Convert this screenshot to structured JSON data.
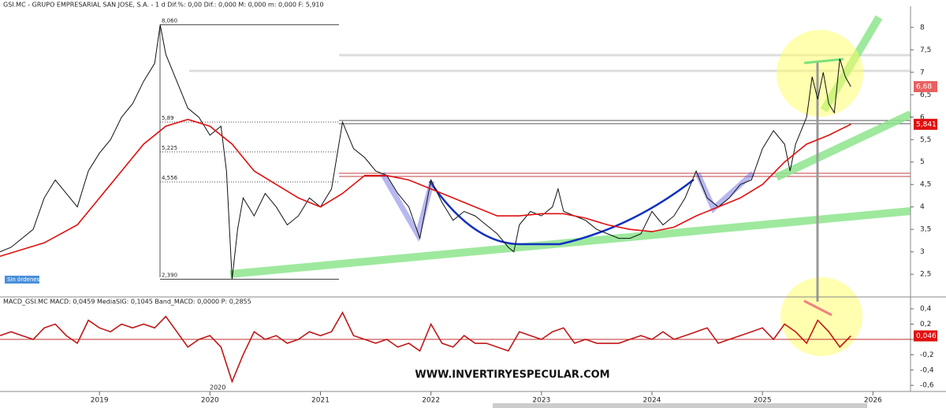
{
  "chart_data": [
    {
      "type": "line",
      "header": "GSI.MC - GRUPO EMPRESARIAL SAN JOSE, S.A. - 1 d  Dif.%: 0,00  Dif.: 0,000  M: 0,000  m: 0,000  F: 5,910",
      "xlim": [
        2018.1,
        2026.34
      ],
      "ylim": [
        2.03,
        8.47
      ],
      "yticks": [
        8,
        {
          "value": 7.5,
          "label": "7,5"
        },
        7,
        {
          "value": 6.5,
          "label": "6,5"
        },
        6,
        {
          "value": 5.5,
          "label": "5,5"
        },
        5,
        {
          "value": 4.5,
          "label": "4,5"
        },
        4,
        {
          "value": 3.5,
          "label": "3,5"
        },
        3,
        {
          "value": 2.5,
          "label": "2,5"
        }
      ],
      "series": [
        {
          "color": "#111111",
          "x": [
            2018.1,
            2018.2,
            2018.3,
            2018.4,
            2018.5,
            2018.6,
            2018.7,
            2018.8,
            2018.9,
            2019.0,
            2019.1,
            2019.2,
            2019.3,
            2019.4,
            2019.5,
            2019.55,
            2019.6,
            2019.7,
            2019.8,
            2019.9,
            2020.0,
            2020.1,
            2020.15,
            2020.2,
            2020.25,
            2020.3,
            2020.4,
            2020.5,
            2020.6,
            2020.7,
            2020.8,
            2020.9,
            2021.0,
            2021.1,
            2021.2,
            2021.3,
            2021.4,
            2021.5,
            2021.6,
            2021.7,
            2021.8,
            2021.9,
            2022.0,
            2022.1,
            2022.2,
            2022.3,
            2022.4,
            2022.5,
            2022.6,
            2022.7,
            2022.75,
            2022.8,
            2022.9,
            2023.0,
            2023.1,
            2023.15,
            2023.2,
            2023.3,
            2023.4,
            2023.5,
            2023.6,
            2023.7,
            2023.8,
            2023.9,
            2024.0,
            2024.1,
            2024.2,
            2024.3,
            2024.4,
            2024.5,
            2024.6,
            2024.7,
            2024.8,
            2024.9,
            2025.0,
            2025.1,
            2025.2,
            2025.25,
            2025.3,
            2025.4,
            2025.45,
            2025.5,
            2025.55,
            2025.6,
            2025.65,
            2025.7,
            2025.75,
            2025.8
          ],
          "values": [
            3.0,
            3.1,
            3.3,
            3.5,
            4.2,
            4.6,
            4.3,
            4.0,
            4.8,
            5.2,
            5.5,
            6.0,
            6.3,
            6.8,
            7.2,
            8.06,
            7.4,
            6.8,
            6.2,
            6.0,
            5.6,
            5.8,
            4.8,
            2.39,
            3.5,
            4.2,
            3.8,
            4.3,
            4.0,
            3.6,
            3.8,
            4.2,
            4.0,
            4.4,
            5.89,
            5.3,
            5.1,
            4.8,
            4.7,
            4.3,
            4.0,
            3.3,
            4.6,
            4.1,
            3.7,
            3.9,
            3.8,
            3.6,
            3.4,
            3.1,
            3.0,
            3.6,
            3.9,
            3.8,
            4.0,
            4.4,
            3.9,
            3.8,
            3.7,
            3.5,
            3.4,
            3.3,
            3.3,
            3.4,
            3.9,
            3.6,
            3.8,
            4.2,
            4.8,
            4.2,
            4.0,
            4.2,
            4.5,
            4.6,
            5.3,
            5.7,
            5.4,
            4.8,
            5.4,
            6.0,
            6.9,
            6.4,
            7.0,
            6.3,
            6.1,
            7.3,
            6.9,
            6.68
          ]
        },
        {
          "color": "#e01010",
          "x": [
            2018.1,
            2018.5,
            2018.8,
            2019.0,
            2019.2,
            2019.4,
            2019.6,
            2019.8,
            2020.0,
            2020.2,
            2020.4,
            2020.6,
            2020.8,
            2021.0,
            2021.2,
            2021.4,
            2021.6,
            2021.8,
            2022.0,
            2022.2,
            2022.4,
            2022.6,
            2022.8,
            2023.0,
            2023.2,
            2023.4,
            2023.6,
            2023.8,
            2024.0,
            2024.2,
            2024.4,
            2024.6,
            2024.8,
            2025.0,
            2025.2,
            2025.4,
            2025.6,
            2025.8
          ],
          "values": [
            2.9,
            3.2,
            3.6,
            4.2,
            4.8,
            5.4,
            5.8,
            5.95,
            5.8,
            5.4,
            4.8,
            4.5,
            4.2,
            4.0,
            4.3,
            4.7,
            4.7,
            4.6,
            4.4,
            4.2,
            4.0,
            3.8,
            3.8,
            3.85,
            3.85,
            3.75,
            3.6,
            3.5,
            3.45,
            3.55,
            3.8,
            4.0,
            4.2,
            4.5,
            5.0,
            5.4,
            5.6,
            5.841
          ]
        }
      ],
      "fib_levels": [
        {
          "value": 8.06,
          "label": "8,060"
        },
        {
          "value": 5.89,
          "label": "5,89"
        },
        {
          "value": 5.225,
          "label": "5,225"
        },
        {
          "value": 4.556,
          "label": "4,556"
        },
        {
          "value": 2.39,
          "label": "2,390"
        }
      ],
      "last_labels": [
        {
          "value": 6.68,
          "label": "6,68"
        },
        {
          "value": 5.841,
          "label": "5,841"
        }
      ],
      "status": "Sin órdenes",
      "watermark": "WWW.INVERTIRYESPECULAR.COM"
    },
    {
      "type": "line",
      "header": "MACD_GSI.MC  MACD: 0,0459  MediaSIG: 0,1045  Band_MACD: 0,0000  P: 0,2855",
      "xlim": [
        2018.1,
        2026.34
      ],
      "ylim": [
        -0.68,
        0.524
      ],
      "yticks": [
        {
          "value": 0.4,
          "label": "0,4"
        },
        {
          "value": 0.2,
          "label": "0,2"
        },
        0,
        {
          "value": -0.2,
          "label": "-0,2"
        },
        {
          "value": -0.4,
          "label": "-0,4"
        },
        {
          "value": -0.6,
          "label": "-0,6"
        }
      ],
      "xticks": [
        2019,
        2020,
        2021,
        2022,
        2023,
        2024,
        2025,
        2026
      ],
      "cursor_label": "2020",
      "series": [
        {
          "color": "#c01818",
          "x": [
            2018.1,
            2018.2,
            2018.3,
            2018.4,
            2018.5,
            2018.6,
            2018.7,
            2018.8,
            2018.9,
            2019.0,
            2019.1,
            2019.2,
            2019.3,
            2019.4,
            2019.5,
            2019.6,
            2019.7,
            2019.8,
            2019.9,
            2020.0,
            2020.1,
            2020.2,
            2020.3,
            2020.4,
            2020.5,
            2020.6,
            2020.7,
            2020.8,
            2020.9,
            2021.0,
            2021.1,
            2021.2,
            2021.3,
            2021.4,
            2021.5,
            2021.6,
            2021.7,
            2021.8,
            2021.9,
            2022.0,
            2022.1,
            2022.2,
            2022.3,
            2022.4,
            2022.5,
            2022.6,
            2022.7,
            2022.8,
            2022.9,
            2023.0,
            2023.1,
            2023.2,
            2023.3,
            2023.4,
            2023.5,
            2023.6,
            2023.7,
            2023.8,
            2023.9,
            2024.0,
            2024.1,
            2024.2,
            2024.3,
            2024.4,
            2024.5,
            2024.6,
            2024.7,
            2024.8,
            2024.9,
            2025.0,
            2025.1,
            2025.2,
            2025.3,
            2025.4,
            2025.5,
            2025.6,
            2025.7,
            2025.8
          ],
          "values": [
            0.05,
            0.1,
            0.05,
            0.0,
            0.15,
            0.2,
            0.05,
            -0.05,
            0.25,
            0.15,
            0.1,
            0.2,
            0.15,
            0.2,
            0.15,
            0.3,
            0.1,
            -0.1,
            0.0,
            0.05,
            -0.1,
            -0.55,
            -0.2,
            0.1,
            0.0,
            0.05,
            -0.05,
            0.0,
            0.1,
            0.05,
            0.1,
            0.35,
            0.05,
            0.0,
            -0.05,
            0.0,
            -0.1,
            -0.05,
            -0.15,
            0.2,
            -0.05,
            -0.1,
            0.05,
            -0.05,
            -0.05,
            -0.1,
            -0.15,
            0.1,
            0.05,
            0.0,
            0.1,
            0.15,
            -0.05,
            0.0,
            -0.05,
            -0.05,
            -0.05,
            0.0,
            0.05,
            0.0,
            0.1,
            0.0,
            0.05,
            0.1,
            0.15,
            -0.05,
            0.0,
            0.05,
            0.1,
            0.15,
            0.0,
            0.2,
            0.1,
            -0.05,
            0.25,
            0.1,
            -0.1,
            0.046
          ]
        }
      ],
      "last_labels": [
        {
          "value": 0.046,
          "label": "0,046"
        }
      ]
    }
  ]
}
